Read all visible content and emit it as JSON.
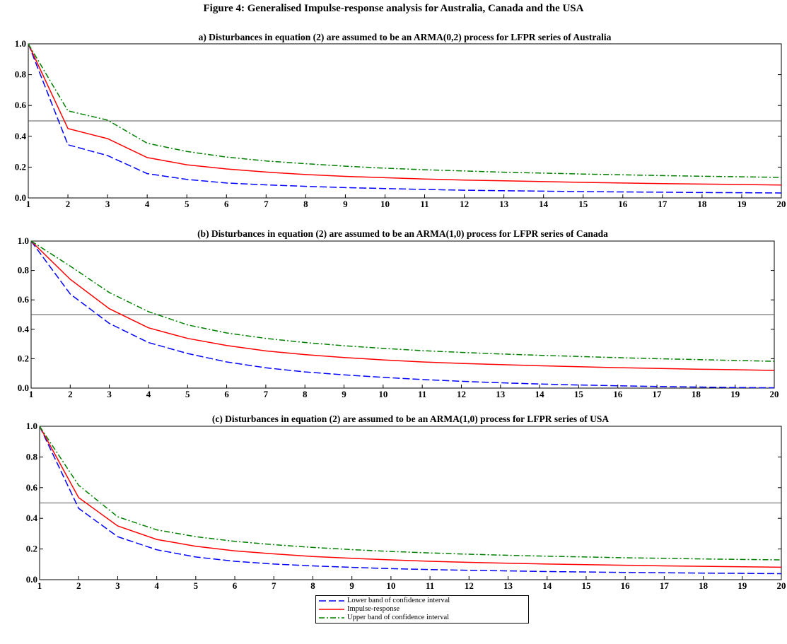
{
  "figure_title": "Figure 4: Generalised Impulse-response analysis for Australia, Canada and the USA",
  "legend": {
    "items": [
      {
        "label": "Lower band of confidence interval",
        "color": "#0000ff",
        "dash": "dashed"
      },
      {
        "label": "Impulse-response",
        "color": "#ff0000",
        "dash": "solid"
      },
      {
        "label": "Upper band of confidence interval",
        "color": "#008000",
        "dash": "dashdot"
      }
    ]
  },
  "chart_data": [
    {
      "type": "line",
      "title": "a) Disturbances in equation (2) are assumed to be an ARMA(0,2) process for LFPR series of Australia",
      "x": [
        1,
        2,
        3,
        4,
        5,
        6,
        7,
        8,
        9,
        10,
        11,
        12,
        13,
        14,
        15,
        16,
        17,
        18,
        19,
        20
      ],
      "xlim": [
        1,
        20
      ],
      "ylim": [
        0.0,
        1.0
      ],
      "y_ticks": [
        "0.0",
        "0.2",
        "0.4",
        "0.6",
        "0.8",
        "1.0"
      ],
      "reference_line": 0.5,
      "series": [
        {
          "name": "Lower band of confidence interval",
          "values": [
            1.0,
            0.345,
            0.275,
            0.158,
            0.12,
            0.097,
            0.085,
            0.075,
            0.067,
            0.061,
            0.055,
            0.05,
            0.047,
            0.044,
            0.041,
            0.039,
            0.037,
            0.035,
            0.034,
            0.032
          ]
        },
        {
          "name": "Impulse-response",
          "values": [
            1.0,
            0.45,
            0.385,
            0.262,
            0.215,
            0.188,
            0.168,
            0.152,
            0.14,
            0.131,
            0.123,
            0.116,
            0.111,
            0.106,
            0.101,
            0.097,
            0.093,
            0.09,
            0.087,
            0.084
          ]
        },
        {
          "name": "Upper band of confidence interval",
          "values": [
            1.0,
            0.565,
            0.505,
            0.355,
            0.302,
            0.265,
            0.24,
            0.222,
            0.206,
            0.193,
            0.183,
            0.175,
            0.167,
            0.161,
            0.155,
            0.15,
            0.145,
            0.141,
            0.137,
            0.133
          ]
        }
      ]
    },
    {
      "type": "line",
      "title": "(b) Disturbances in equation (2) are assumed to be an ARMA(1,0) process for LFPR series of Canada",
      "x": [
        1,
        2,
        3,
        4,
        5,
        6,
        7,
        8,
        9,
        10,
        11,
        12,
        13,
        14,
        15,
        16,
        17,
        18,
        19,
        20
      ],
      "xlim": [
        1,
        20
      ],
      "ylim": [
        0.0,
        1.0
      ],
      "y_ticks": [
        "0.0",
        "0.2",
        "0.4",
        "0.6",
        "0.8",
        "1.0"
      ],
      "reference_line": 0.5,
      "series": [
        {
          "name": "Lower band of confidence interval",
          "values": [
            1.0,
            0.64,
            0.44,
            0.31,
            0.235,
            0.178,
            0.138,
            0.11,
            0.09,
            0.073,
            0.058,
            0.046,
            0.036,
            0.028,
            0.021,
            0.016,
            0.011,
            0.007,
            0.004,
            0.002
          ]
        },
        {
          "name": "Impulse-response",
          "values": [
            1.0,
            0.74,
            0.54,
            0.41,
            0.338,
            0.29,
            0.253,
            0.228,
            0.208,
            0.192,
            0.178,
            0.168,
            0.16,
            0.152,
            0.145,
            0.139,
            0.134,
            0.129,
            0.125,
            0.12
          ]
        },
        {
          "name": "Upper band of confidence interval",
          "values": [
            1.0,
            0.83,
            0.65,
            0.52,
            0.43,
            0.375,
            0.338,
            0.31,
            0.288,
            0.27,
            0.255,
            0.243,
            0.232,
            0.223,
            0.215,
            0.207,
            0.2,
            0.194,
            0.188,
            0.182
          ]
        }
      ]
    },
    {
      "type": "line",
      "title": "(c) Disturbances in equation (2) are assumed to be an ARMA(1,0) process for LFPR series of USA",
      "x": [
        1,
        2,
        3,
        4,
        5,
        6,
        7,
        8,
        9,
        10,
        11,
        12,
        13,
        14,
        15,
        16,
        17,
        18,
        19,
        20
      ],
      "xlim": [
        1,
        20
      ],
      "ylim": [
        0.0,
        1.0
      ],
      "y_ticks": [
        "0.0",
        "0.2",
        "0.4",
        "0.6",
        "0.8",
        "1.0"
      ],
      "reference_line": 0.5,
      "series": [
        {
          "name": "Lower band of confidence interval",
          "values": [
            1.0,
            0.465,
            0.28,
            0.195,
            0.148,
            0.12,
            0.102,
            0.09,
            0.08,
            0.072,
            0.066,
            0.061,
            0.057,
            0.053,
            0.05,
            0.047,
            0.045,
            0.043,
            0.041,
            0.039
          ]
        },
        {
          "name": "Impulse-response",
          "values": [
            1.0,
            0.535,
            0.35,
            0.262,
            0.218,
            0.188,
            0.168,
            0.151,
            0.139,
            0.129,
            0.12,
            0.113,
            0.107,
            0.102,
            0.098,
            0.094,
            0.09,
            0.087,
            0.084,
            0.081
          ]
        },
        {
          "name": "Upper band of confidence interval",
          "values": [
            1.0,
            0.615,
            0.41,
            0.325,
            0.28,
            0.25,
            0.228,
            0.21,
            0.196,
            0.184,
            0.174,
            0.166,
            0.159,
            0.153,
            0.148,
            0.143,
            0.139,
            0.135,
            0.132,
            0.129
          ]
        }
      ]
    }
  ]
}
